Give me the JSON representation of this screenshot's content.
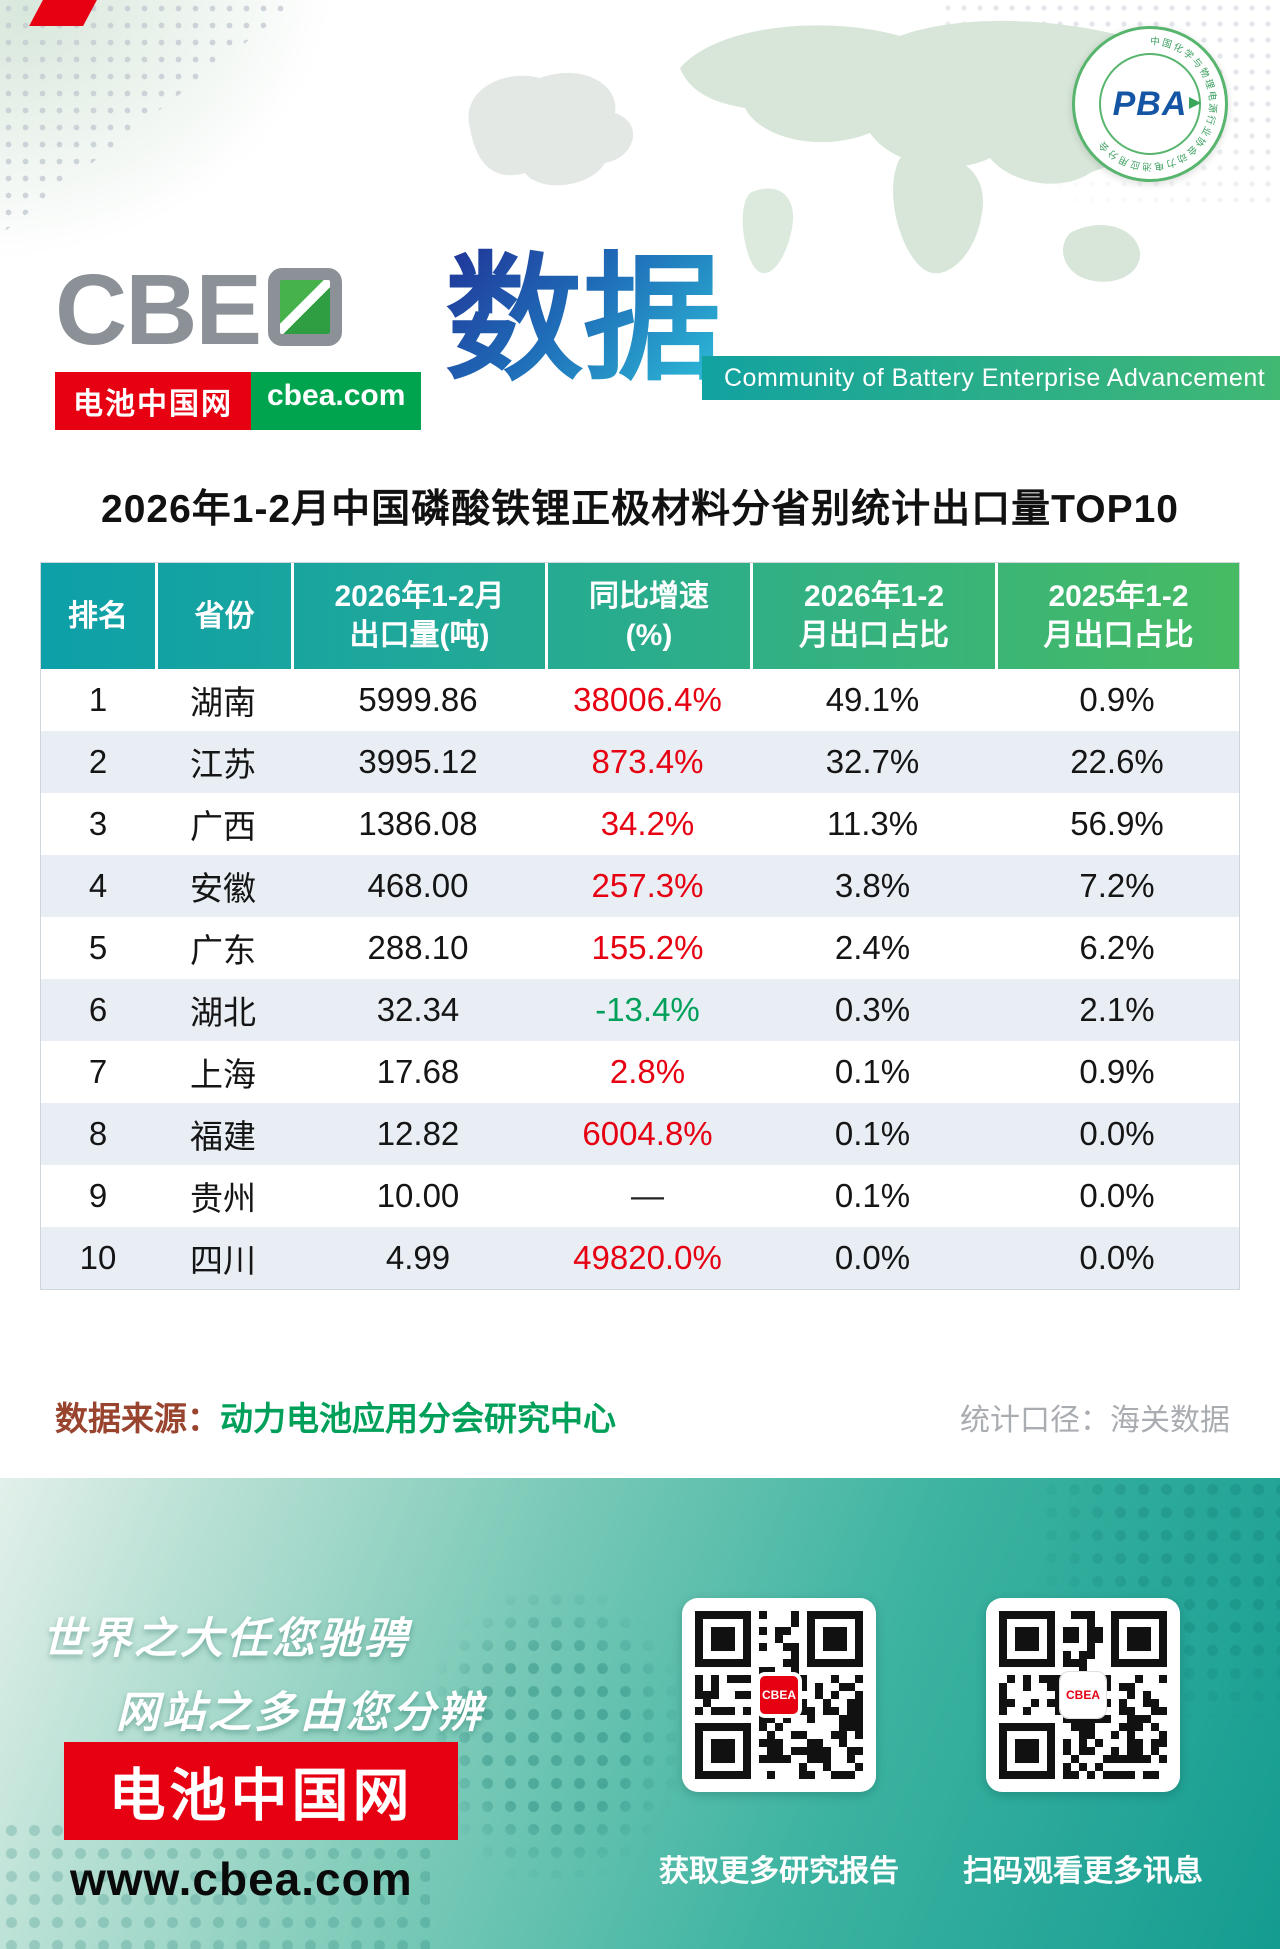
{
  "header": {
    "logo_prefix": "CBE",
    "logo_text": "CBEA",
    "brand_cn": "电池中国网",
    "brand_domain": "cbea.com",
    "data_label": "数据",
    "tagline": "Community of Battery Enterprise Advancement",
    "pba_badge": {
      "abbr": "PBA",
      "ring_text": "中国化学与物理电源行业协会动力电池应用分会"
    }
  },
  "title": "2026年1-2月中国磷酸铁锂正极材料分省别统计出口量TOP10",
  "table": {
    "headers": [
      "排名",
      "省份",
      "2026年1-2月\n出口量(吨)",
      "同比增速\n(%)",
      "2026年1-2\n月出口占比",
      "2025年1-2\n月出口占比"
    ],
    "rows": [
      {
        "rank": "1",
        "province": "湖南",
        "volume": "5999.86",
        "growth": "38006.4%",
        "share_2026": "49.1%",
        "share_2025": "0.9%"
      },
      {
        "rank": "2",
        "province": "江苏",
        "volume": "3995.12",
        "growth": "873.4%",
        "share_2026": "32.7%",
        "share_2025": "22.6%"
      },
      {
        "rank": "3",
        "province": "广西",
        "volume": "1386.08",
        "growth": "34.2%",
        "share_2026": "11.3%",
        "share_2025": "56.9%"
      },
      {
        "rank": "4",
        "province": "安徽",
        "volume": "468.00",
        "growth": "257.3%",
        "share_2026": "3.8%",
        "share_2025": "7.2%"
      },
      {
        "rank": "5",
        "province": "广东",
        "volume": "288.10",
        "growth": "155.2%",
        "share_2026": "2.4%",
        "share_2025": "6.2%"
      },
      {
        "rank": "6",
        "province": "湖北",
        "volume": "32.34",
        "growth": "-13.4%",
        "share_2026": "0.3%",
        "share_2025": "2.1%"
      },
      {
        "rank": "7",
        "province": "上海",
        "volume": "17.68",
        "growth": "2.8%",
        "share_2026": "0.1%",
        "share_2025": "0.9%"
      },
      {
        "rank": "8",
        "province": "福建",
        "volume": "12.82",
        "growth": "6004.8%",
        "share_2026": "0.1%",
        "share_2025": "0.0%"
      },
      {
        "rank": "9",
        "province": "贵州",
        "volume": "10.00",
        "growth": "—",
        "share_2026": "0.1%",
        "share_2025": "0.0%"
      },
      {
        "rank": "10",
        "province": "四川",
        "volume": "4.99",
        "growth": "49820.0%",
        "share_2026": "0.0%",
        "share_2025": "0.0%"
      }
    ]
  },
  "chart_data": {
    "type": "table",
    "title": "2026年1-2月中国磷酸铁锂正极材料分省别统计出口量TOP10",
    "columns": [
      "排名",
      "省份",
      "2026年1-2月出口量(吨)",
      "同比增速(%)",
      "2026年1-2月出口占比",
      "2025年1-2月出口占比"
    ],
    "rows": [
      [
        1,
        "湖南",
        5999.86,
        38006.4,
        49.1,
        0.9
      ],
      [
        2,
        "江苏",
        3995.12,
        873.4,
        32.7,
        22.6
      ],
      [
        3,
        "广西",
        1386.08,
        34.2,
        11.3,
        56.9
      ],
      [
        4,
        "安徽",
        468.0,
        257.3,
        3.8,
        7.2
      ],
      [
        5,
        "广东",
        288.1,
        155.2,
        2.4,
        6.2
      ],
      [
        6,
        "湖北",
        32.34,
        -13.4,
        0.3,
        2.1
      ],
      [
        7,
        "上海",
        17.68,
        2.8,
        0.1,
        0.9
      ],
      [
        8,
        "福建",
        12.82,
        6004.8,
        0.1,
        0.0
      ],
      [
        9,
        "贵州",
        10.0,
        null,
        0.1,
        0.0
      ],
      [
        10,
        "四川",
        4.99,
        49820.0,
        0.0,
        0.0
      ]
    ],
    "units": {
      "volume": "吨",
      "growth": "%",
      "share": "%"
    }
  },
  "source": {
    "prefix": "数据来源：",
    "value": "动力电池应用分会研究中心",
    "caliber": "统计口径：海关数据"
  },
  "footer": {
    "slogan_line1": "世界之大任您驰骋",
    "slogan_line2": "网站之多由您分辨",
    "brand_box": "电池中国网",
    "url": "www.cbea.com",
    "qr1_caption": "获取更多研究报告",
    "qr2_caption": "扫码观看更多讯息",
    "qr_badge": "CBEA"
  },
  "colors": {
    "accent_red": "#e60012",
    "teal": "#12a2a0",
    "green": "#41b973",
    "growth_up": "#e60012",
    "growth_down": "#00a05a"
  }
}
